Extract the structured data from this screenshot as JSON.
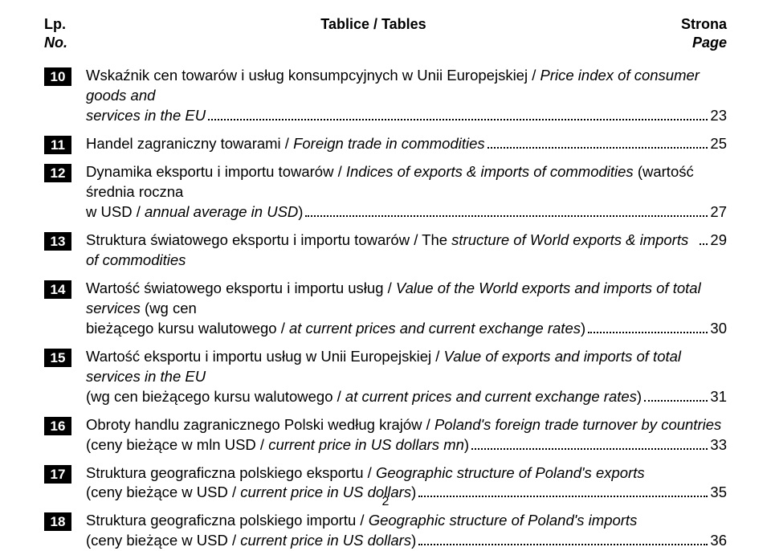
{
  "header": {
    "left1": "Lp.",
    "center1": "Tablice / Tables",
    "right1": "Strona",
    "left2": "No.",
    "right2": "Page"
  },
  "entries": [
    {
      "num": "10",
      "lines": [
        {
          "pre": "Wskaźnik cen towarów i usług konsumpcyjnych w Unii Europejskiej / ",
          "it": "Price index of consumer goods and"
        },
        {
          "it": "services in the EU",
          "page": "23"
        }
      ]
    },
    {
      "num": "11",
      "lines": [
        {
          "pre": "Handel zagraniczny  towarami / ",
          "it": "Foreign trade in commodities",
          "page": "25"
        }
      ]
    },
    {
      "num": "12",
      "lines": [
        {
          "pre": "Dynamika eksportu i importu towarów / ",
          "it": "Indices of exports & imports of commodities ",
          "post": "(wartość średnia roczna"
        },
        {
          "pre": "w USD / ",
          "it": "annual average in USD",
          "post": ")",
          "page": " 27"
        }
      ]
    },
    {
      "num": "13",
      "lines": [
        {
          "pre": "Struktura światowego eksportu i importu towarów / The ",
          "it": "structure of World exports & imports of commodities",
          "page": "29"
        }
      ]
    },
    {
      "num": "14",
      "lines": [
        {
          "pre": "Wartość światowego eksportu i importu usług / ",
          "it": "Value of the World exports and imports of total services ",
          "post": "(wg cen"
        },
        {
          "pre": "bieżącego kursu walutowego / ",
          "it": "at current prices and current exchange rates",
          "post": ")",
          "page": "30"
        }
      ]
    },
    {
      "num": "15",
      "lines": [
        {
          "pre": "Wartość  eksportu i importu usług w Unii Europejskiej / ",
          "it": "Value of exports and imports of total services in the EU"
        },
        {
          "pre": "(wg cen bieżącego kursu walutowego / ",
          "it": "at current prices and current exchange rates",
          "post": ")",
          "page": "31"
        }
      ]
    },
    {
      "num": "16",
      "lines": [
        {
          "pre": "Obroty handlu zagranicznego Polski według krajów / ",
          "it": "Poland's foreign trade turnover by countries"
        },
        {
          "pre": "(ceny bieżące w mln USD / ",
          "it": "current price in US dollars mn",
          "post": ")",
          "page": "33"
        }
      ]
    },
    {
      "num": "17",
      "lines": [
        {
          "pre": "Struktura geograficzna polskiego eksportu / ",
          "it": "Geographic structure of Poland's exports"
        },
        {
          "pre": "(ceny bieżące w USD / ",
          "it": "current price in US dollars",
          "post": ")",
          "page": "35"
        }
      ]
    },
    {
      "num": "18",
      "lines": [
        {
          "pre": "Struktura geograficzna polskiego importu / ",
          "it": "Geographic structure of Poland's imports"
        },
        {
          "pre": "(ceny bieżące w USD / ",
          "it": "current price in US dollars",
          "post": ")",
          "page": "36"
        }
      ]
    }
  ],
  "pageNumber": "2"
}
